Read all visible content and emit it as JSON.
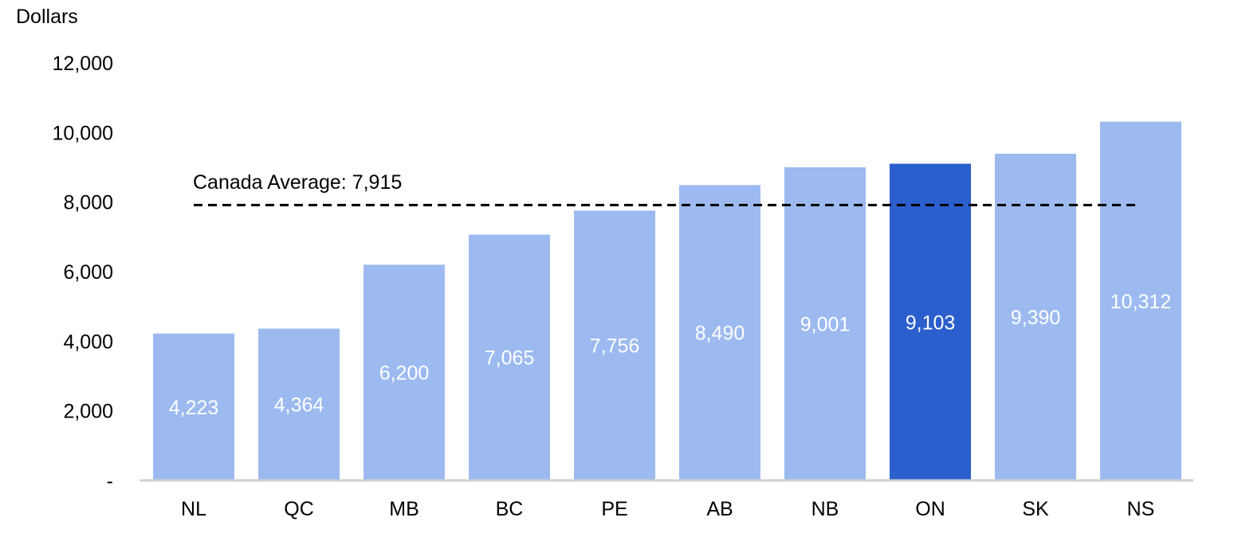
{
  "chart_data": {
    "type": "bar",
    "ylabel": "Dollars",
    "ylim": [
      0,
      12000
    ],
    "yticks": [
      {
        "value": 0,
        "label": "-"
      },
      {
        "value": 2000,
        "label": "2,000"
      },
      {
        "value": 4000,
        "label": "4,000"
      },
      {
        "value": 6000,
        "label": "6,000"
      },
      {
        "value": 8000,
        "label": "8,000"
      },
      {
        "value": 10000,
        "label": "10,000"
      },
      {
        "value": 12000,
        "label": "12,000"
      }
    ],
    "categories": [
      "NL",
      "QC",
      "MB",
      "BC",
      "PE",
      "AB",
      "NB",
      "ON",
      "SK",
      "NS"
    ],
    "values": [
      4223,
      4364,
      6200,
      7065,
      7756,
      8490,
      9001,
      9103,
      9390,
      10312
    ],
    "value_labels": [
      "4,223",
      "4,364",
      "6,200",
      "7,065",
      "7,756",
      "8,490",
      "9,001",
      "9,103",
      "9,390",
      "10,312"
    ],
    "highlight_category": "ON",
    "reference_line": {
      "value": 7915,
      "label": "Canada Average: 7,915",
      "style": "dashed"
    },
    "grid": false,
    "legend": "none",
    "colors": {
      "bar": "#9dbaf0",
      "highlight": "#2b5fcd",
      "axis": "#d0d0d0",
      "reference": "#000000"
    }
  }
}
